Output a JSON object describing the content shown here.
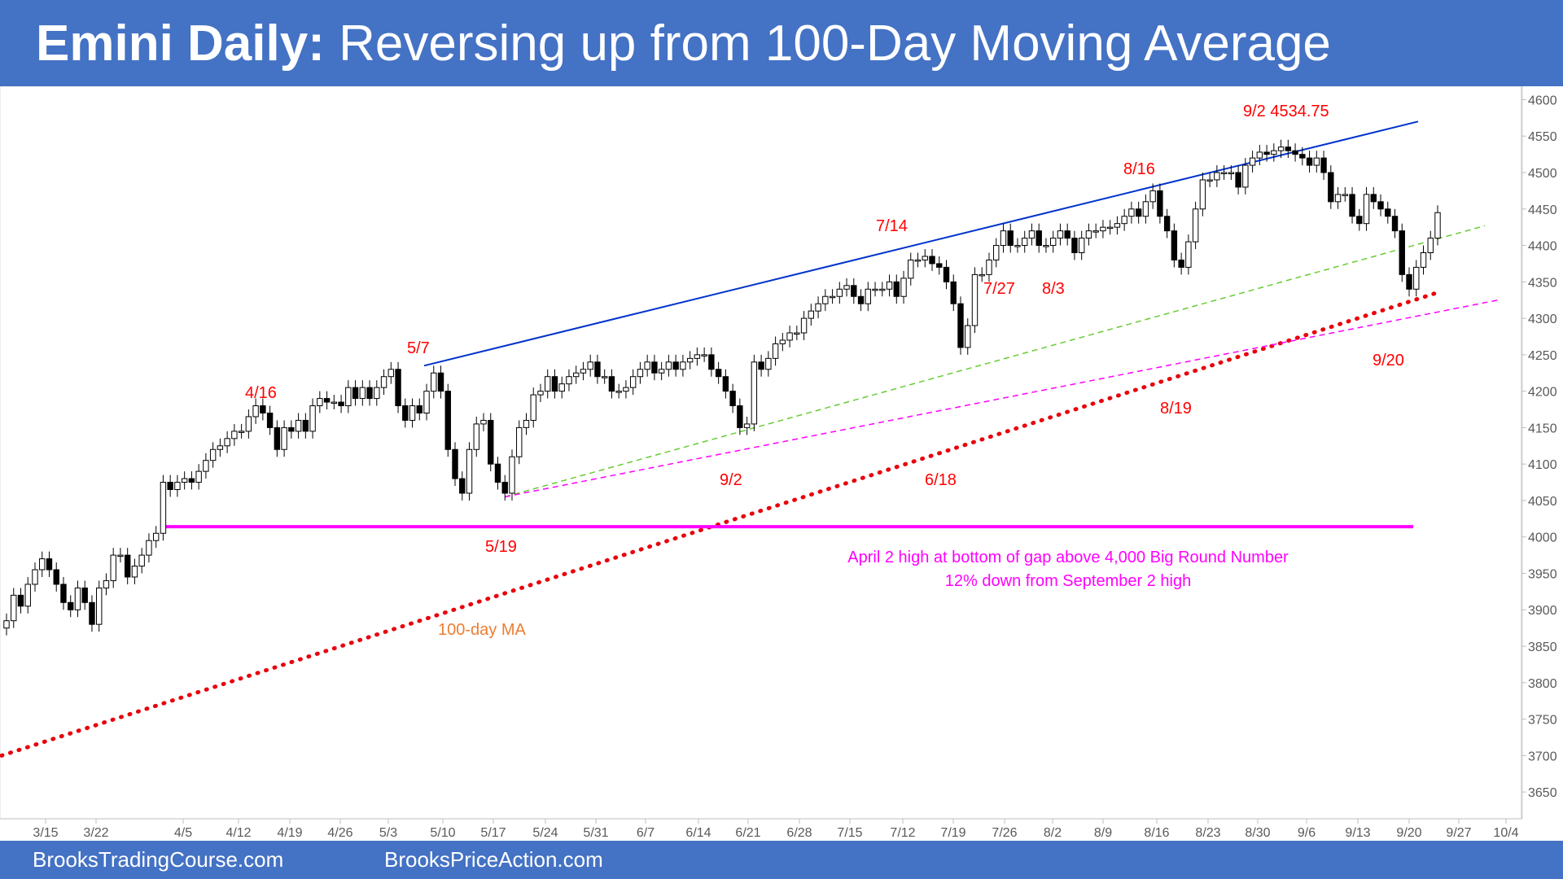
{
  "header": {
    "title_bold": "Emini Daily:",
    "title_rest": " Reversing up from 100-Day Moving Average"
  },
  "footer": {
    "left": "BrooksTradingCourse.com",
    "right": "BrooksPriceAction.com"
  },
  "colors": {
    "banner": "#4472c4",
    "annotation_red": "#ff0000",
    "magenta": "#ff00ff",
    "channel_line": "#0033cc",
    "ma_dots": "#e8000b",
    "green_trendline": "#66cc33",
    "ma_label": "#ed7d31",
    "bull_candle": "#ffffff",
    "bear_candle": "#000000"
  },
  "chart_data": {
    "type": "candlestick",
    "y_axis": {
      "min": 3630,
      "max": 4605,
      "ticks": [
        3650,
        3700,
        3750,
        3800,
        3850,
        3900,
        3950,
        4000,
        4050,
        4100,
        4150,
        4200,
        4250,
        4300,
        4350,
        4400,
        4450,
        4500,
        4550,
        4600
      ],
      "position": "right"
    },
    "x_axis": {
      "tick_labels": [
        "3/15",
        "3/22",
        "4/5",
        "4/12",
        "4/19",
        "4/26",
        "5/3",
        "5/10",
        "5/17",
        "5/24",
        "5/31",
        "6/7",
        "6/14",
        "6/21",
        "6/28",
        "7/15",
        "7/12",
        "7/19",
        "7/26",
        "8/2",
        "8/9",
        "8/16",
        "8/23",
        "8/30",
        "9/6",
        "9/13",
        "9/20",
        "9/27",
        "10/4"
      ]
    },
    "series_ohlc_closes": [
      3885,
      3920,
      3905,
      3935,
      3955,
      3970,
      3955,
      3935,
      3910,
      3900,
      3930,
      3910,
      3880,
      3930,
      3940,
      3975,
      3975,
      3945,
      3960,
      3975,
      3995,
      4005,
      4075,
      4065,
      4075,
      4080,
      4075,
      4090,
      4105,
      4120,
      4125,
      4135,
      4145,
      4145,
      4165,
      4180,
      4170,
      4150,
      4120,
      4150,
      4145,
      4160,
      4145,
      4180,
      4190,
      4185,
      4185,
      4180,
      4205,
      4190,
      4205,
      4190,
      4205,
      4220,
      4230,
      4180,
      4160,
      4180,
      4170,
      4200,
      4225,
      4200,
      4120,
      4080,
      4060,
      4120,
      4155,
      4160,
      4100,
      4075,
      4060,
      4110,
      4150,
      4160,
      4195,
      4200,
      4220,
      4200,
      4210,
      4220,
      4225,
      4230,
      4240,
      4220,
      4220,
      4200,
      4200,
      4205,
      4220,
      4230,
      4240,
      4225,
      4230,
      4240,
      4230,
      4240,
      4245,
      4250,
      4250,
      4230,
      4220,
      4200,
      4180,
      4150,
      4155,
      4240,
      4230,
      4245,
      4265,
      4270,
      4280,
      4280,
      4300,
      4310,
      4320,
      4330,
      4330,
      4340,
      4345,
      4330,
      4320,
      4340,
      4340,
      4340,
      4350,
      4330,
      4355,
      4380,
      4380,
      4385,
      4375,
      4370,
      4350,
      4320,
      4260,
      4290,
      4360,
      4360,
      4380,
      4400,
      4420,
      4400,
      4400,
      4410,
      4420,
      4400,
      4400,
      4410,
      4420,
      4410,
      4390,
      4410,
      4420,
      4420,
      4425,
      4425,
      4430,
      4440,
      4450,
      4440,
      4460,
      4475,
      4440,
      4420,
      4380,
      4370,
      4405,
      4450,
      4490,
      4490,
      4500,
      4500,
      4500,
      4480,
      4510,
      4520,
      4528,
      4525,
      4530,
      4535,
      4530,
      4525,
      4520,
      4510,
      4520,
      4500,
      4460,
      4470,
      4470,
      4440,
      4430,
      4470,
      4460,
      4450,
      4440,
      4420,
      4360,
      4340,
      4370,
      4390,
      4410,
      4445
    ],
    "series": [
      {
        "name": "100-day MA",
        "start": {
          "date": "3/11",
          "value": 3700
        },
        "end": {
          "date": "9/22",
          "value": 4335
        }
      },
      {
        "name": "",
        "start": {
          "date": "5/7",
          "value": 4235
        },
        "end": {
          "date": "9/22",
          "value": 4570
        }
      },
      {
        "name": "",
        "start": {
          "date": "5/19",
          "value": 4055
        },
        "end": {
          "date": "9/24",
          "value": 4427
        }
      },
      {
        "name": "",
        "start": {
          "date": "5/19",
          "value": 4055
        },
        "end": {
          "date": "9/30",
          "value": 4325
        }
      },
      {
        "name": "",
        "value": 4014
      }
    ],
    "annotations": {
      "a_4_16": "4/16",
      "a_5_7": "5/7",
      "a_5_19": "5/19",
      "a_7_14": "7/14",
      "a_7_27": "7/27",
      "a_8_3": "8/3",
      "a_8_16": "8/16",
      "a_9_2_high": "9/2 4534.75",
      "a_9_20": "9/20",
      "a_8_19": "8/19",
      "a_9_2": "9/2",
      "a_6_18": "6/18",
      "ma_label": "100-day MA",
      "gap_note_1": "April 2 high at bottom of gap above 4,000 Big Round Number",
      "gap_note_2": "12% down from September 2 high"
    }
  }
}
